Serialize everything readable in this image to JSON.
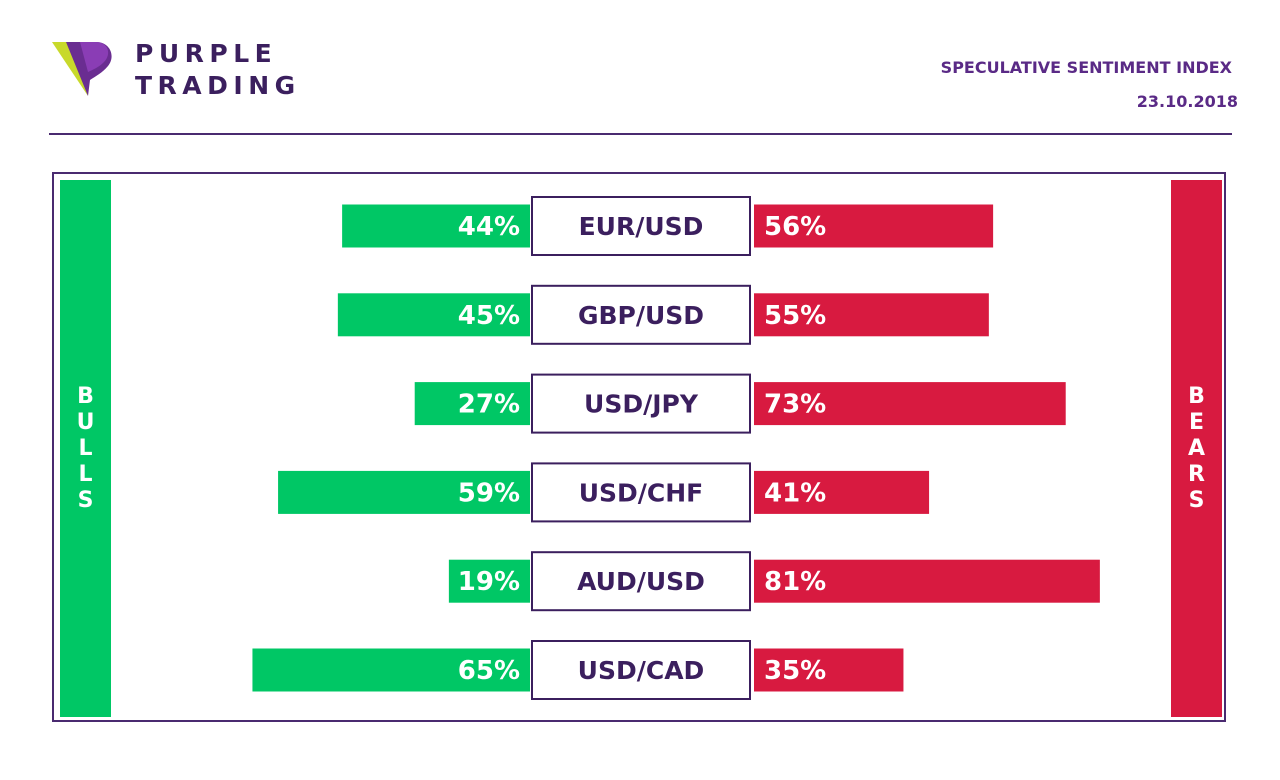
{
  "header": {
    "brand_line1": "PURPLE",
    "brand_line2": "TRADING",
    "title": "SPECULATIVE SENTIMENT INDEX",
    "date": "23.10.2018"
  },
  "sides": {
    "bulls": "BULLS",
    "bears": "BEARS"
  },
  "colors": {
    "bulls": "#00c765",
    "bears": "#d81a40",
    "accent": "#3b1f5e"
  },
  "chart_data": {
    "type": "bar",
    "categories": [
      "EUR/USD",
      "GBP/USD",
      "USD/JPY",
      "USD/CHF",
      "AUD/USD",
      "USD/CAD"
    ],
    "series": [
      {
        "name": "BULLS",
        "values": [
          44,
          45,
          27,
          59,
          19,
          65
        ]
      },
      {
        "name": "BEARS",
        "values": [
          56,
          55,
          73,
          41,
          81,
          35
        ]
      }
    ],
    "unit": "%",
    "ylim": [
      0,
      100
    ],
    "legend": "sides"
  }
}
